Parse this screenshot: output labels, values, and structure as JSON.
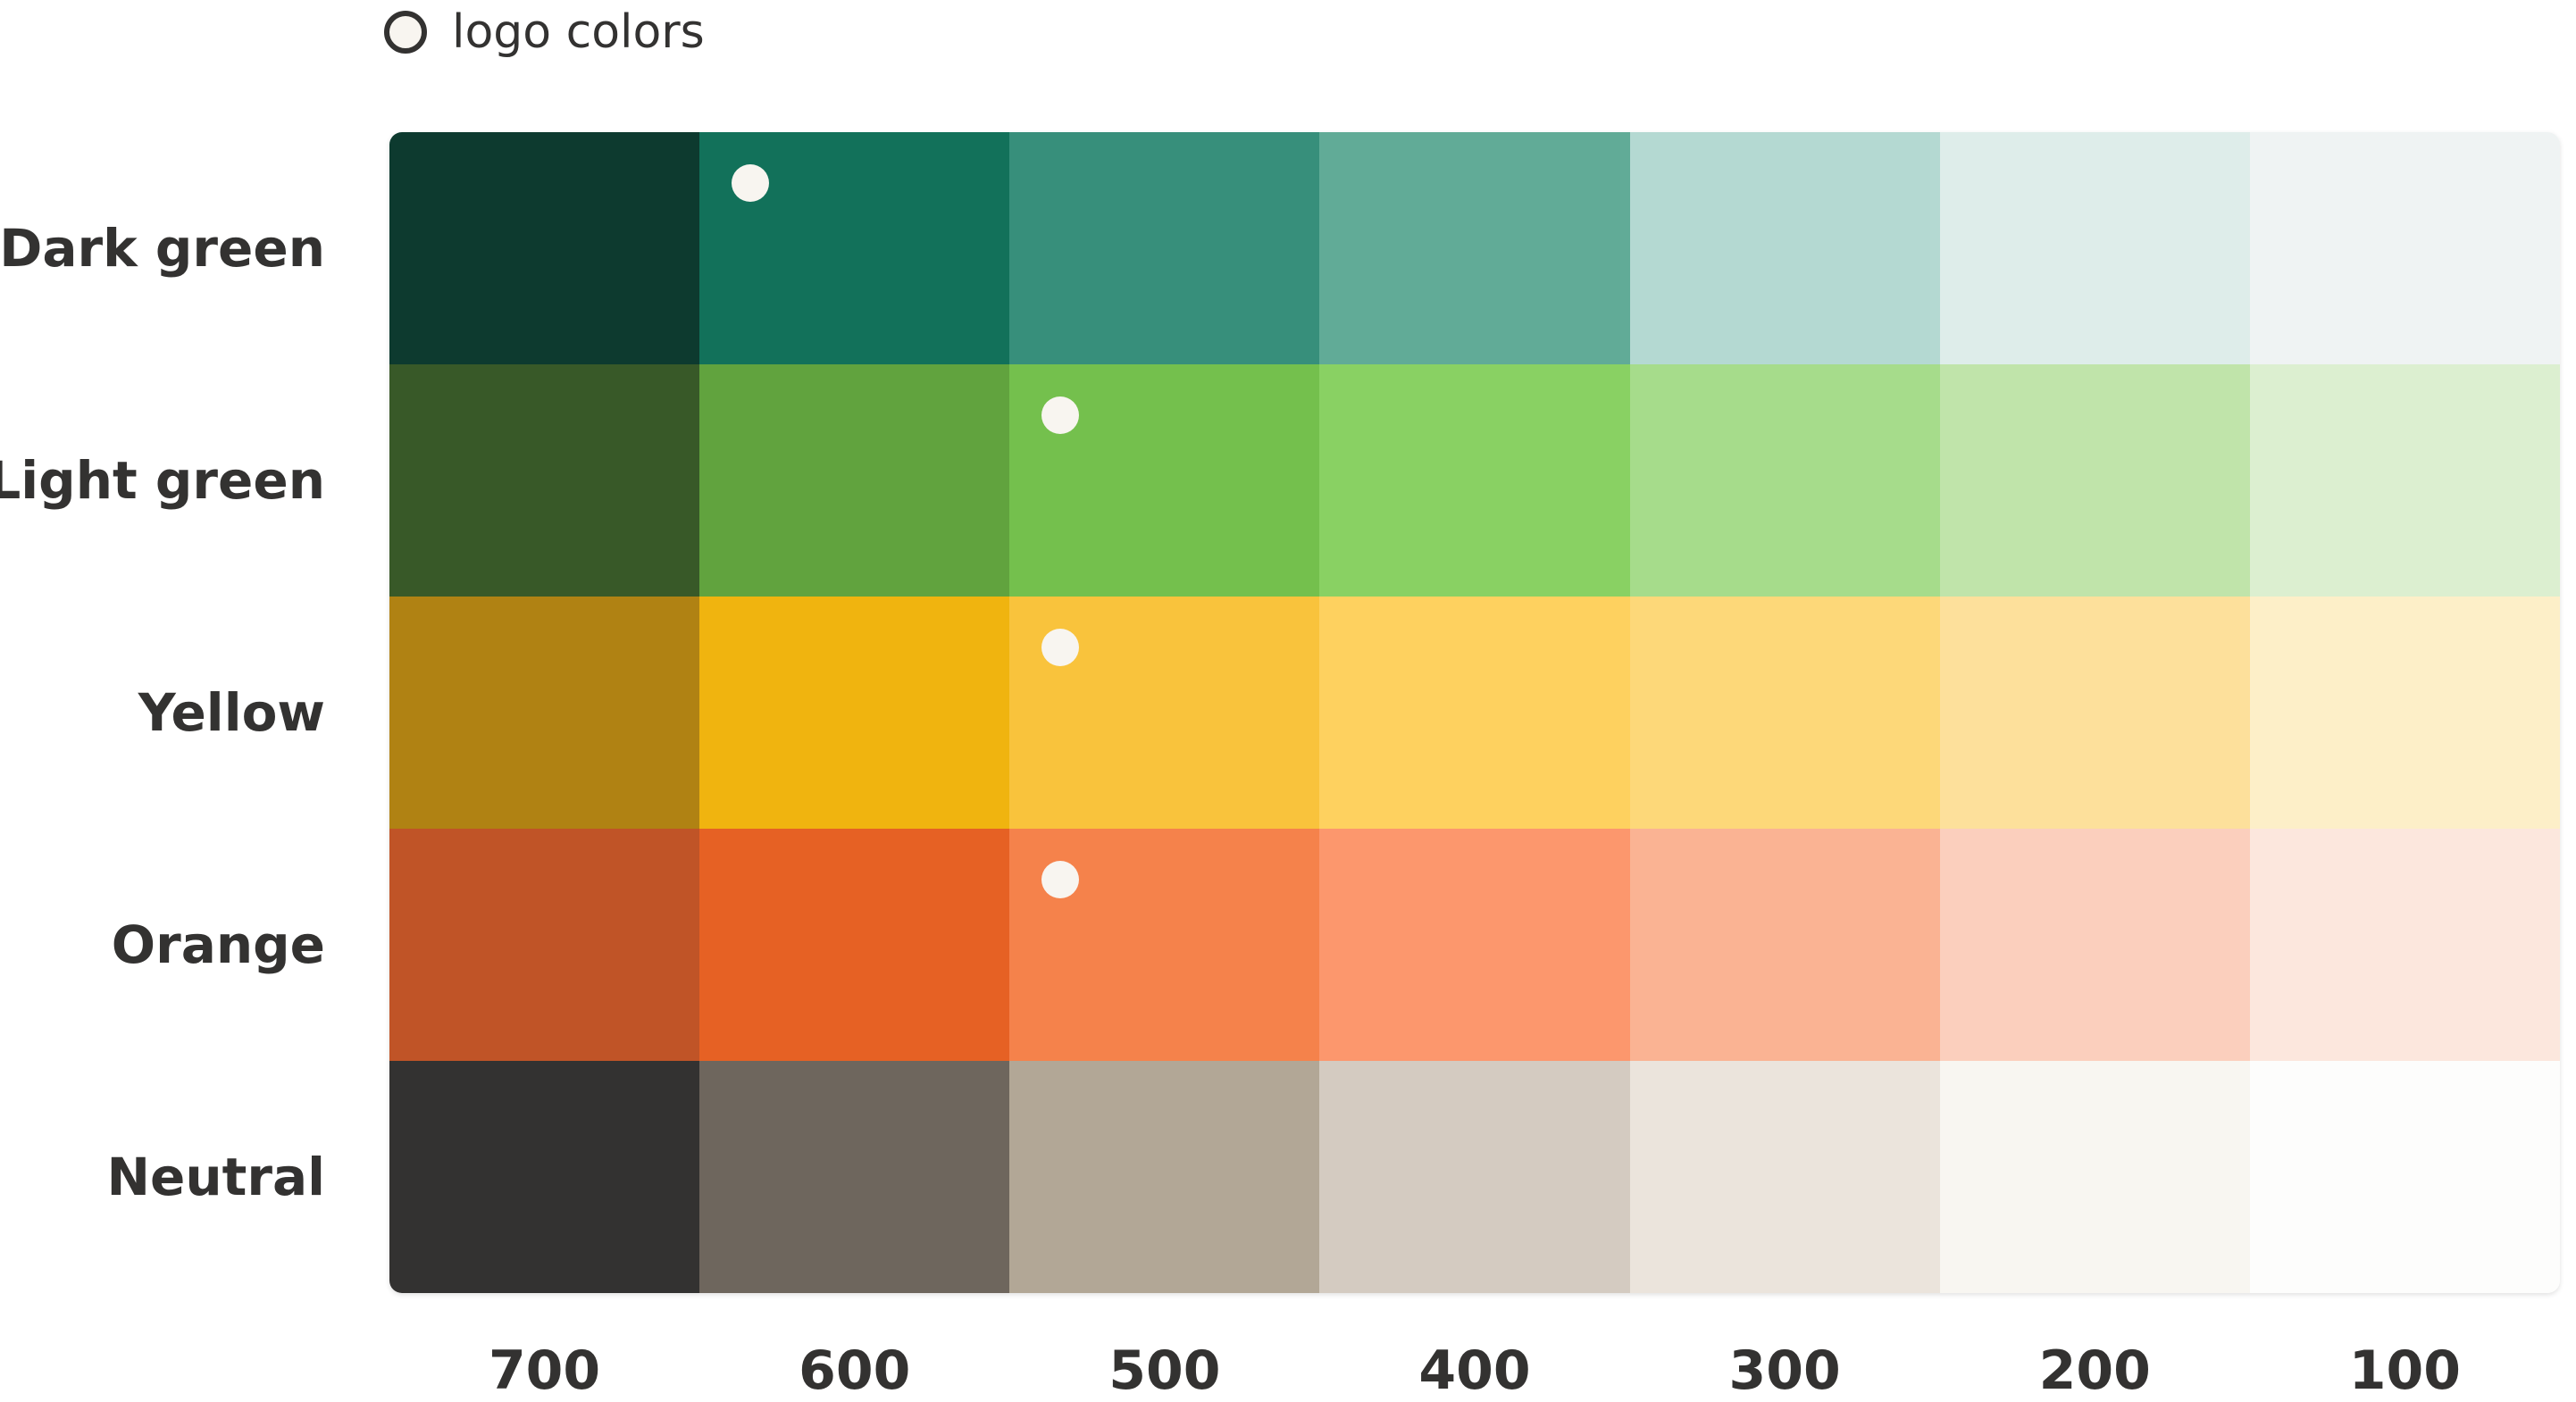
{
  "legend": {
    "label": "logo colors",
    "marker_icon": "circle-outline-icon"
  },
  "shades": [
    "700",
    "600",
    "500",
    "400",
    "300",
    "200",
    "100"
  ],
  "palette": [
    {
      "name": "Dark green",
      "colors": [
        "#0d3a2f",
        "#12715a",
        "#378f7b",
        "#61ab97",
        "#b4d9d2",
        "#deedea",
        "#eff3f3"
      ],
      "logo_index": 1
    },
    {
      "name": "Light green",
      "colors": [
        "#385928",
        "#61a33e",
        "#74c04d",
        "#89d163",
        "#a6dc8b",
        "#c0e4aa",
        "#dcefd0"
      ],
      "logo_index": 2
    },
    {
      "name": "Yellow",
      "colors": [
        "#b08213",
        "#f0b40f",
        "#f9c33c",
        "#fed15f",
        "#fdd879",
        "#fde09b",
        "#fdefc8"
      ],
      "logo_index": 2
    },
    {
      "name": "Orange",
      "colors": [
        "#c05427",
        "#e66124",
        "#f5824b",
        "#fc976d",
        "#fab393",
        "#fbcfbd",
        "#fce7dd"
      ],
      "logo_index": 2
    },
    {
      "name": "Neutral",
      "colors": [
        "#333231",
        "#6e665d",
        "#b2a796",
        "#d4cbc1",
        "#ebe4dc",
        "#f8f6f1",
        "#fdfdfc"
      ],
      "logo_index": null
    }
  ]
}
